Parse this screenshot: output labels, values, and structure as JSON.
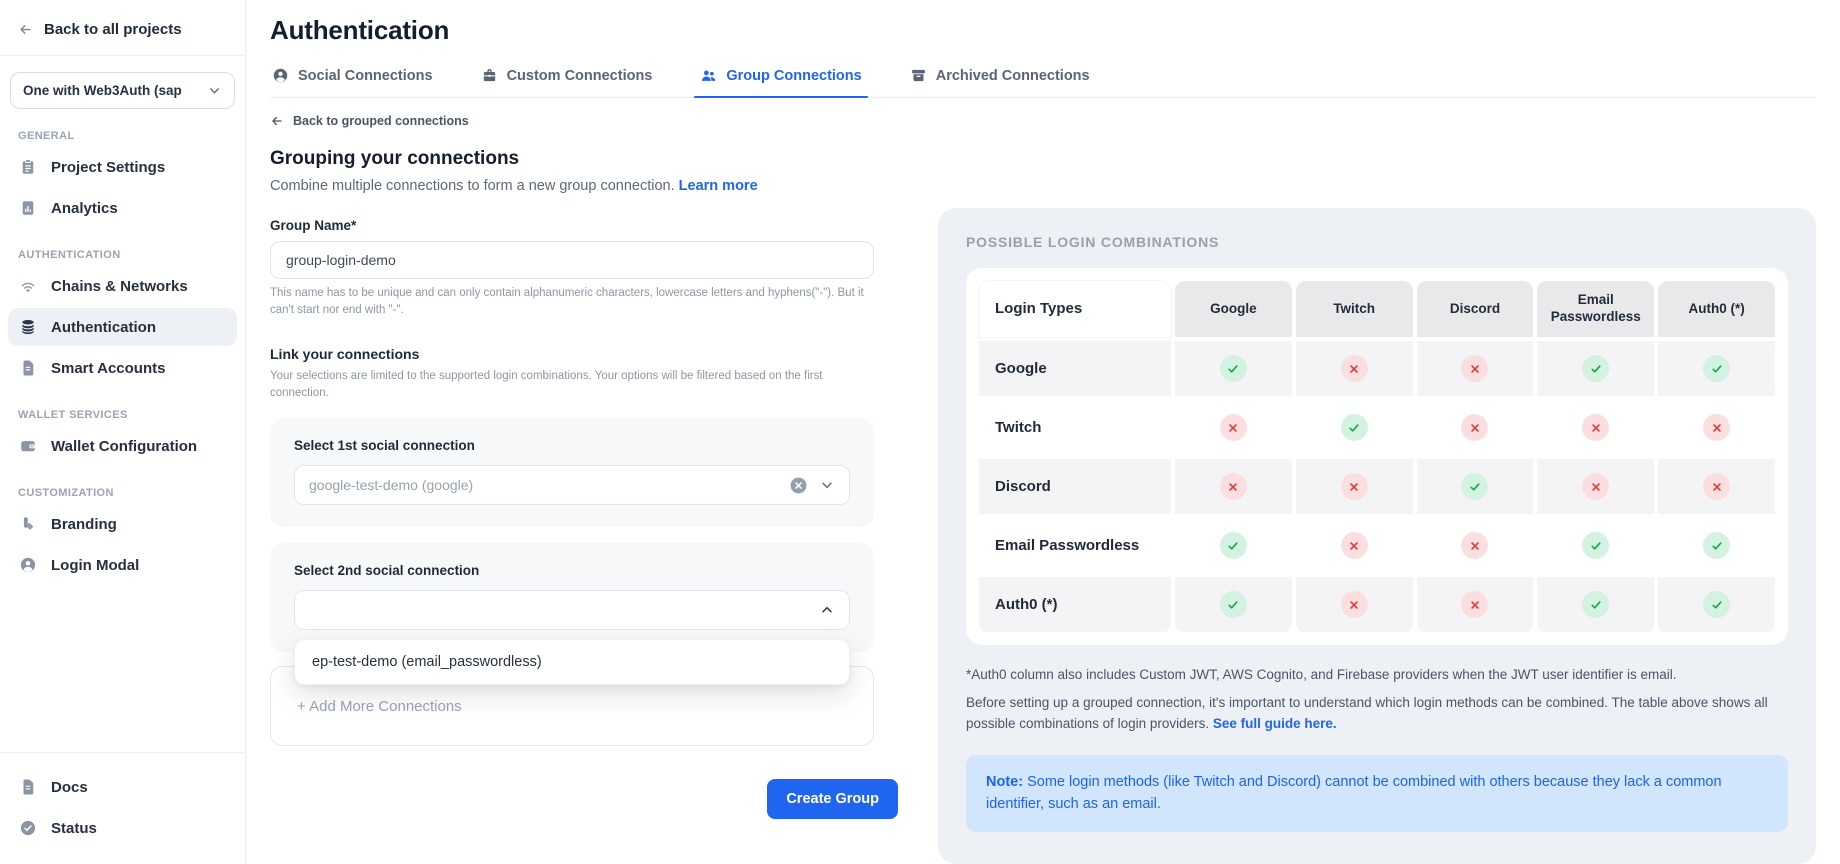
{
  "sidebar": {
    "back_label": "Back to all projects",
    "project_selector": "One with Web3Auth (sap",
    "sections": [
      {
        "label": "GENERAL",
        "items": [
          {
            "label": "Project Settings",
            "icon": "clipboard"
          },
          {
            "label": "Analytics",
            "icon": "analytics"
          }
        ]
      },
      {
        "label": "AUTHENTICATION",
        "items": [
          {
            "label": "Chains & Networks",
            "icon": "wifi"
          },
          {
            "label": "Authentication",
            "icon": "layers",
            "active": true
          },
          {
            "label": "Smart Accounts",
            "icon": "file"
          }
        ]
      },
      {
        "label": "WALLET SERVICES",
        "items": [
          {
            "label": "Wallet Configuration",
            "icon": "wallet"
          }
        ]
      },
      {
        "label": "CUSTOMIZATION",
        "items": [
          {
            "label": "Branding",
            "icon": "brush"
          },
          {
            "label": "Login Modal",
            "icon": "user-circle"
          }
        ]
      }
    ],
    "footer_items": [
      {
        "label": "Docs",
        "icon": "doc"
      },
      {
        "label": "Status",
        "icon": "check-circle"
      }
    ]
  },
  "header": {
    "title": "Authentication",
    "tabs": [
      {
        "label": "Social Connections",
        "icon": "user-circle",
        "active": false
      },
      {
        "label": "Custom Connections",
        "icon": "toolbox",
        "active": false
      },
      {
        "label": "Group Connections",
        "icon": "users",
        "active": true
      },
      {
        "label": "Archived Connections",
        "icon": "archive",
        "active": false
      }
    ]
  },
  "form": {
    "back_link": "Back to grouped connections",
    "title": "Grouping your connections",
    "subtitle": "Combine multiple connections to form a new group connection.",
    "learn_more": "Learn more",
    "group_name": {
      "label": "Group Name*",
      "value": "group-login-demo",
      "helper": "This name has to be unique and can only contain alphanumeric characters, lowercase letters and hyphens(\"-\"). But it can't start nor end with \"-\"."
    },
    "link_section": {
      "title": "Link your connections",
      "helper": "Your selections are limited to the supported login combinations. Your options will be filtered based on the first connection."
    },
    "select1": {
      "label": "Select 1st social connection",
      "value": "google-test-demo (google)"
    },
    "select2": {
      "label": "Select 2nd social connection",
      "value": ""
    },
    "dropdown_option": "ep-test-demo (email_passwordless)",
    "add_more": "+ Add More Connections",
    "create_button": "Create Group"
  },
  "combinations": {
    "title": "POSSIBLE LOGIN COMBINATIONS",
    "table": {
      "columns": [
        "Login Types",
        "Google",
        "Twitch",
        "Discord",
        "Email Passwordless",
        "Auth0 (*)"
      ],
      "rows": [
        {
          "label": "Google",
          "values": [
            true,
            false,
            false,
            true,
            true
          ]
        },
        {
          "label": "Twitch",
          "values": [
            false,
            true,
            false,
            false,
            false
          ]
        },
        {
          "label": "Discord",
          "values": [
            false,
            false,
            true,
            false,
            false
          ]
        },
        {
          "label": "Email Passwordless",
          "values": [
            true,
            false,
            false,
            true,
            true
          ]
        },
        {
          "label": "Auth0 (*)",
          "values": [
            true,
            false,
            false,
            true,
            true
          ]
        }
      ]
    },
    "footnote": "*Auth0 column also includes Custom JWT, AWS Cognito, and Firebase providers when the JWT user identifier is email.",
    "description": "Before setting up a grouped connection, it's important to understand which login methods can be combined. The table above shows all possible combinations of login providers.",
    "guide_link": "See full guide here.",
    "note_label": "Note:",
    "note_text": "Some login methods (like Twitch and Discord) cannot be combined with others because they lack a common identifier, such as an email."
  },
  "colors": {
    "accent": "#2065F0",
    "panel_bg": "#EDF0F4",
    "note_bg": "#D1E5FC",
    "note_text": "#1D64EA",
    "success": "#17A34A",
    "success_bg": "#D3F2E1",
    "error": "#E03C3C",
    "error_bg": "#FBDFE0"
  }
}
